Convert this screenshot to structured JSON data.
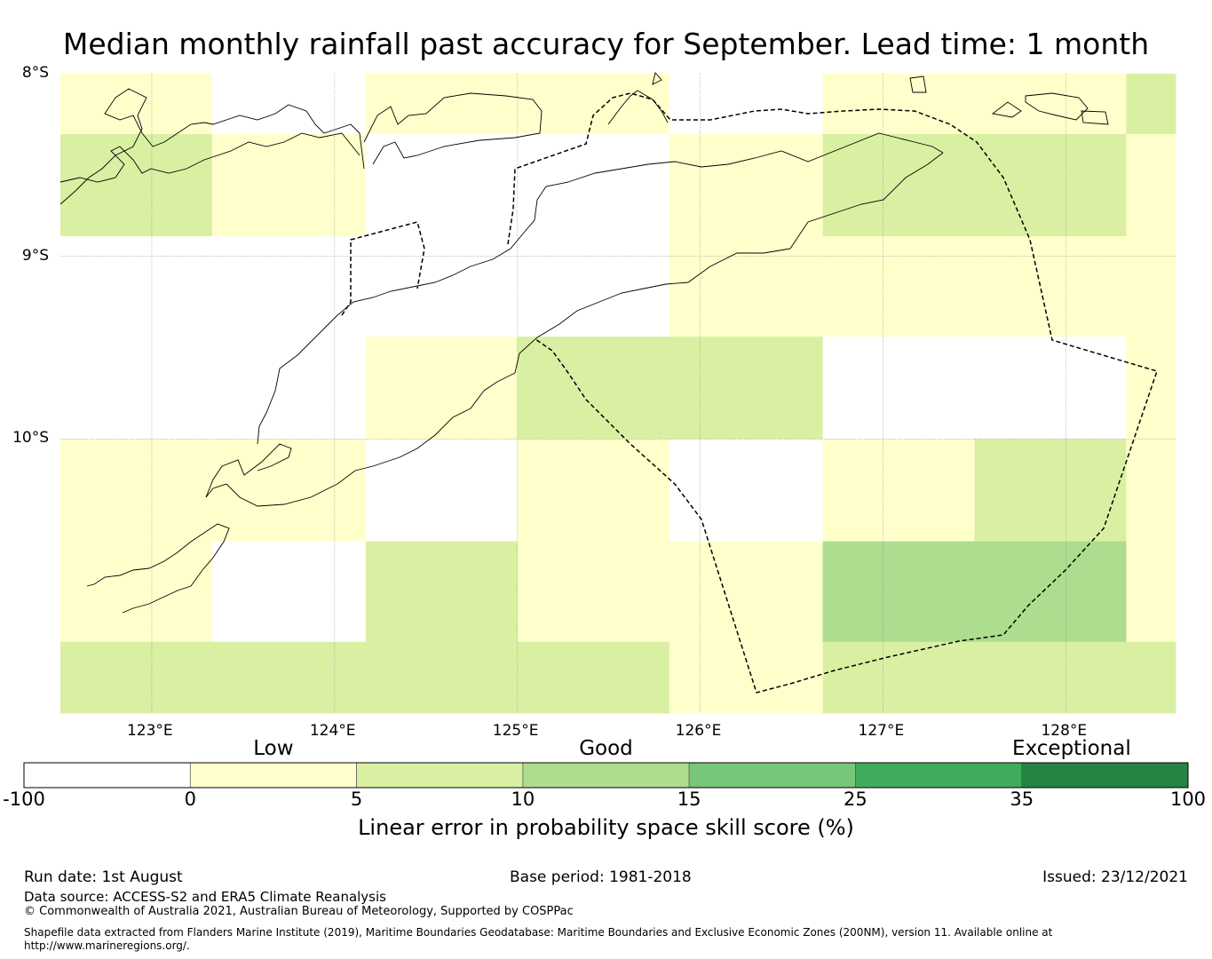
{
  "title": "Median monthly rainfall past accuracy for September. Lead time: 1 month",
  "map": {
    "lon_range": [
      122.5,
      128.6
    ],
    "lat_range": [
      -11.5,
      -8.0
    ],
    "lat_labels": [
      "8°S",
      "9°S",
      "10°S"
    ],
    "lon_labels": [
      "123°E",
      "124°E",
      "125°E",
      "126°E",
      "127°E",
      "128°E"
    ],
    "grid_cells": [
      {
        "lon0": 122.5,
        "lon1": 123.33,
        "lat0": -8.0,
        "lat1": -8.33,
        "cat": 1
      },
      {
        "lon0": 123.33,
        "lon1": 124.17,
        "lat0": -8.0,
        "lat1": -8.33,
        "cat": 0
      },
      {
        "lon0": 124.17,
        "lon1": 125.83,
        "lat0": -8.0,
        "lat1": -8.33,
        "cat": 1
      },
      {
        "lon0": 125.83,
        "lon1": 126.67,
        "lat0": -8.0,
        "lat1": -8.33,
        "cat": 0
      },
      {
        "lon0": 126.67,
        "lon1": 128.33,
        "lat0": -8.0,
        "lat1": -8.33,
        "cat": 1
      },
      {
        "lon0": 128.33,
        "lon1": 128.6,
        "lat0": -8.0,
        "lat1": -8.33,
        "cat": 2
      },
      {
        "lon0": 122.5,
        "lon1": 123.33,
        "lat0": -8.33,
        "lat1": -8.89,
        "cat": 2
      },
      {
        "lon0": 123.33,
        "lon1": 124.17,
        "lat0": -8.33,
        "lat1": -8.89,
        "cat": 1
      },
      {
        "lon0": 124.17,
        "lon1": 125.83,
        "lat0": -8.33,
        "lat1": -8.89,
        "cat": 0
      },
      {
        "lon0": 125.83,
        "lon1": 126.67,
        "lat0": -8.33,
        "lat1": -8.89,
        "cat": 1
      },
      {
        "lon0": 126.67,
        "lon1": 128.33,
        "lat0": -8.33,
        "lat1": -8.89,
        "cat": 2
      },
      {
        "lon0": 128.33,
        "lon1": 128.6,
        "lat0": -8.33,
        "lat1": -8.89,
        "cat": 1
      },
      {
        "lon0": 122.5,
        "lon1": 125.83,
        "lat0": -8.89,
        "lat1": -9.44,
        "cat": 0
      },
      {
        "lon0": 125.83,
        "lon1": 128.6,
        "lat0": -8.89,
        "lat1": -9.44,
        "cat": 1
      },
      {
        "lon0": 122.5,
        "lon1": 124.17,
        "lat0": -9.44,
        "lat1": -10.0,
        "cat": 0
      },
      {
        "lon0": 124.17,
        "lon1": 125.0,
        "lat0": -9.44,
        "lat1": -10.0,
        "cat": 1
      },
      {
        "lon0": 125.0,
        "lon1": 126.67,
        "lat0": -9.44,
        "lat1": -10.0,
        "cat": 2
      },
      {
        "lon0": 126.67,
        "lon1": 128.33,
        "lat0": -9.44,
        "lat1": -10.0,
        "cat": 0
      },
      {
        "lon0": 128.33,
        "lon1": 128.6,
        "lat0": -9.44,
        "lat1": -10.0,
        "cat": 1
      },
      {
        "lon0": 122.5,
        "lon1": 124.17,
        "lat0": -10.0,
        "lat1": -10.56,
        "cat": 1
      },
      {
        "lon0": 124.17,
        "lon1": 125.0,
        "lat0": -10.0,
        "lat1": -10.56,
        "cat": 0
      },
      {
        "lon0": 125.0,
        "lon1": 125.83,
        "lat0": -10.0,
        "lat1": -10.56,
        "cat": 1
      },
      {
        "lon0": 125.83,
        "lon1": 126.67,
        "lat0": -10.0,
        "lat1": -10.56,
        "cat": 0
      },
      {
        "lon0": 126.67,
        "lon1": 127.5,
        "lat0": -10.0,
        "lat1": -10.56,
        "cat": 1
      },
      {
        "lon0": 127.5,
        "lon1": 128.33,
        "lat0": -10.0,
        "lat1": -10.56,
        "cat": 2
      },
      {
        "lon0": 128.33,
        "lon1": 128.6,
        "lat0": -10.0,
        "lat1": -10.56,
        "cat": 1
      },
      {
        "lon0": 122.5,
        "lon1": 123.33,
        "lat0": -10.56,
        "lat1": -11.11,
        "cat": 1
      },
      {
        "lon0": 123.33,
        "lon1": 124.17,
        "lat0": -10.56,
        "lat1": -11.11,
        "cat": 0
      },
      {
        "lon0": 124.17,
        "lon1": 125.0,
        "lat0": -10.56,
        "lat1": -11.11,
        "cat": 2
      },
      {
        "lon0": 125.0,
        "lon1": 126.67,
        "lat0": -10.56,
        "lat1": -11.11,
        "cat": 1
      },
      {
        "lon0": 126.67,
        "lon1": 128.33,
        "lat0": -10.56,
        "lat1": -11.11,
        "cat": 3
      },
      {
        "lon0": 128.33,
        "lon1": 128.6,
        "lat0": -10.56,
        "lat1": -11.11,
        "cat": 1
      },
      {
        "lon0": 122.5,
        "lon1": 125.83,
        "lat0": -11.11,
        "lat1": -11.5,
        "cat": 2
      },
      {
        "lon0": 125.83,
        "lon1": 126.67,
        "lat0": -11.11,
        "lat1": -11.5,
        "cat": 1
      },
      {
        "lon0": 126.67,
        "lon1": 128.6,
        "lat0": -11.11,
        "lat1": -11.5,
        "cat": 2
      }
    ]
  },
  "colorbar": {
    "title": "Linear error in probability space skill score (%)",
    "ticks": [
      "-100",
      "0",
      "5",
      "10",
      "15",
      "25",
      "35",
      "100"
    ],
    "colors": [
      "#ffffff",
      "#ffffcc",
      "#d9f0a3",
      "#addd8e",
      "#78c679",
      "#41ab5d",
      "#238443"
    ],
    "categories": [
      "Low",
      "Good",
      "Exceptional"
    ]
  },
  "footer": {
    "run_date": "Run date: 1st August",
    "base_period": "Base period: 1981-2018",
    "issued": "Issued: 23/12/2021",
    "data_source": "Data source: ACCESS-S2 and ERA5 Climate Reanalysis",
    "copyright": "© Commonwealth of Australia 2021, Australian Bureau of Meteorology, Supported by COSPPac",
    "shapefile_1": "Shapefile data extracted from Flanders Marine Institute (2019), Maritime Boundaries Geodatabase: Maritime Boundaries and Exclusive Economic Zones (200NM), version 11. Available online at",
    "shapefile_2": "http://www.marineregions.org/."
  }
}
